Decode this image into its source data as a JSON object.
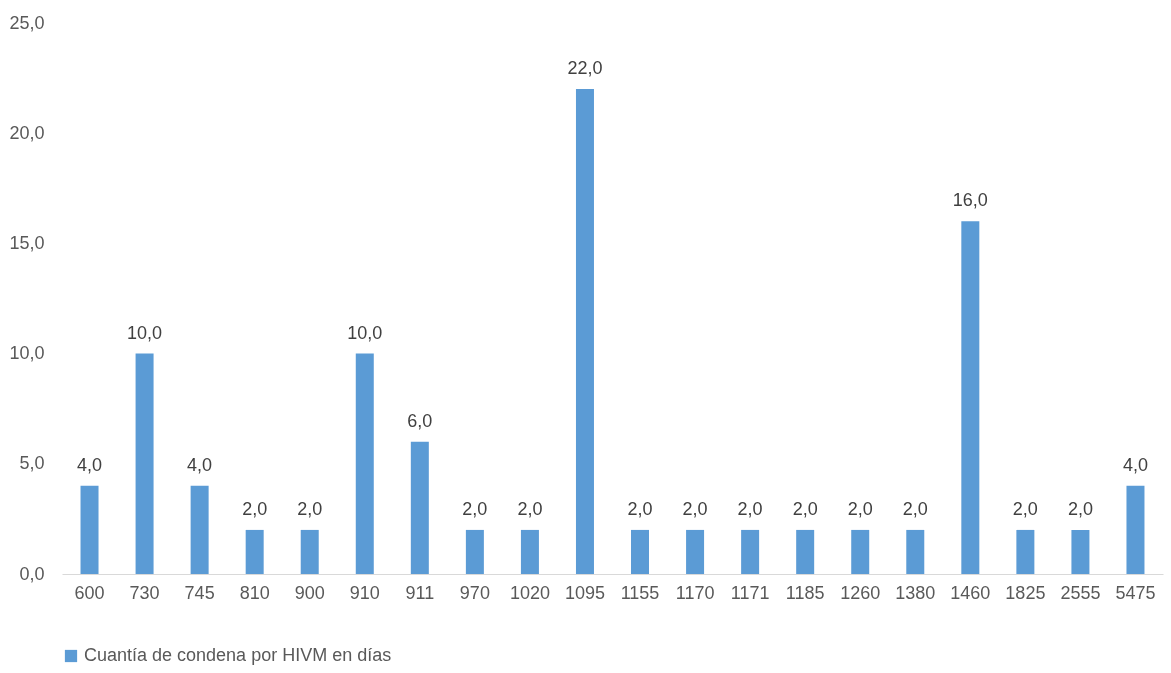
{
  "chart_data": {
    "type": "bar",
    "categories": [
      "600",
      "730",
      "745",
      "810",
      "900",
      "910",
      "911",
      "970",
      "1020",
      "1095",
      "1155",
      "1170",
      "1171",
      "1185",
      "1260",
      "1380",
      "1460",
      "1825",
      "2555",
      "5475"
    ],
    "series": [
      {
        "name": "Cuantía de condena por HIVM en días",
        "color": "#5b9bd5",
        "values": [
          4,
          10,
          4,
          2,
          2,
          10,
          6,
          2,
          2,
          22,
          2,
          2,
          2,
          2,
          2,
          2,
          16,
          2,
          2,
          4
        ],
        "value_labels": [
          "4,0",
          "10,0",
          "4,0",
          "2,0",
          "2,0",
          "10,0",
          "6,0",
          "2,0",
          "2,0",
          "22,0",
          "2,0",
          "2,0",
          "2,0",
          "2,0",
          "2,0",
          "2,0",
          "16,0",
          "2,0",
          "2,0",
          "4,0"
        ]
      }
    ],
    "ylim": [
      0,
      25
    ],
    "yticks": [
      {
        "value": 0,
        "label": "0,0"
      },
      {
        "value": 5,
        "label": "5,0"
      },
      {
        "value": 10,
        "label": "10,0"
      },
      {
        "value": 15,
        "label": "15,0"
      },
      {
        "value": 20,
        "label": "20,0"
      },
      {
        "value": 25,
        "label": "25,0"
      }
    ],
    "grid": false,
    "legend": "bottom"
  }
}
